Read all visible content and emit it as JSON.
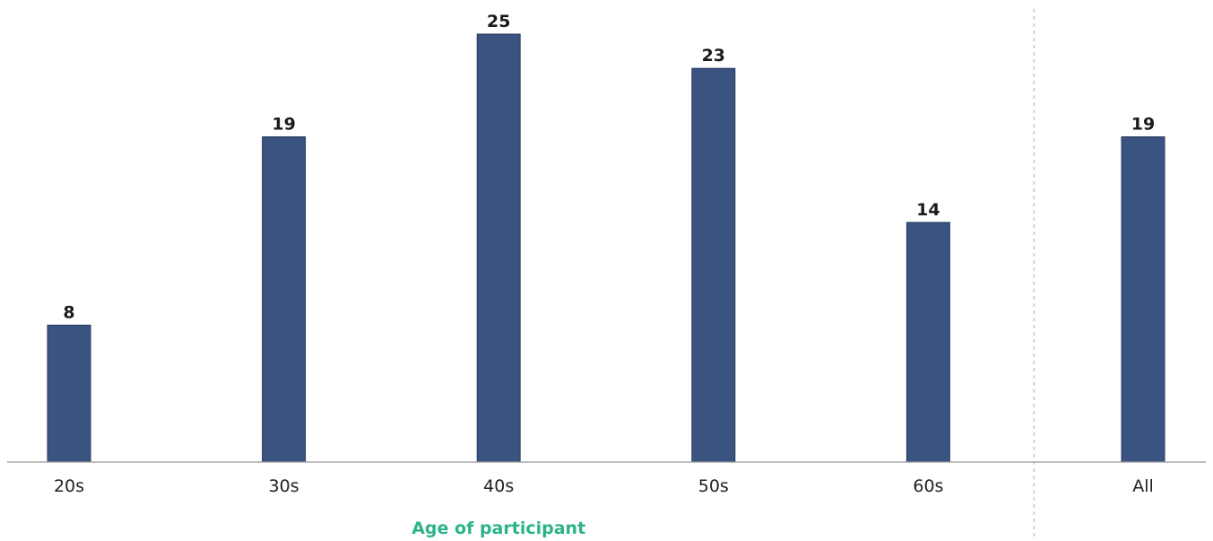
{
  "chart_data": {
    "type": "bar",
    "categories": [
      "20s",
      "30s",
      "40s",
      "50s",
      "60s",
      "All"
    ],
    "values": [
      8,
      19,
      25,
      23,
      14,
      19
    ],
    "data_labels": [
      "8",
      "19",
      "25",
      "23",
      "14",
      "19"
    ],
    "xlabel": "Age of participant",
    "ylabel": "",
    "ylim": [
      0,
      25
    ],
    "grid": false,
    "separator_before_category": "All",
    "colors": {
      "bar": "#3b5381",
      "bar_border": "#2a3a5e",
      "baseline": "#999999",
      "separator": "#aaaaaa",
      "xlabel": "#2bb38a"
    }
  }
}
